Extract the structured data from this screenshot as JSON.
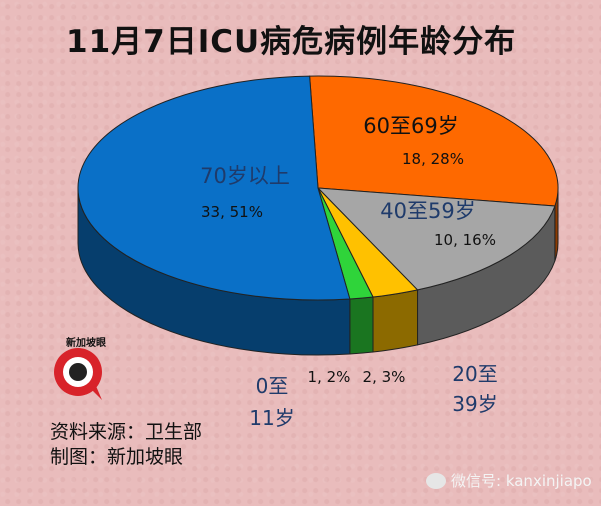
{
  "title": "11月7日ICU病危病例年龄分布",
  "chart_data": {
    "type": "pie",
    "title": "11月7日ICU病危病例年龄分布",
    "slices": [
      {
        "label": "70岁以上",
        "count": 33,
        "percent": 51,
        "value_label": "33, 51%",
        "color": "#0a70c7"
      },
      {
        "label": "60至69岁",
        "count": 18,
        "percent": 28,
        "value_label": "18, 28%",
        "color": "#fe6900"
      },
      {
        "label": "40至59岁",
        "count": 10,
        "percent": 16,
        "value_label": "10, 16%",
        "color": "#a6a6a6"
      },
      {
        "label": "20至39岁",
        "count": 2,
        "percent": 3,
        "value_label": "2, 3%",
        "color": "#ffc100"
      },
      {
        "label": "0至11岁",
        "count": 1,
        "percent": 2,
        "value_label": "1, 2%",
        "color": "#2fd43a"
      }
    ],
    "labels": {
      "s70": "70岁以上",
      "s60": "60至69岁",
      "s40": "40至59岁",
      "s20_line1": "20至",
      "s20_line2": "39岁",
      "s0_line1": "0至",
      "s0_line2": "11岁"
    }
  },
  "footer": {
    "source_line": "资料来源：卫生部",
    "made_by_line": "制图：新加坡眼",
    "logo_text": "新加坡眼",
    "wechat": "微信号: kanxinjiapo"
  }
}
